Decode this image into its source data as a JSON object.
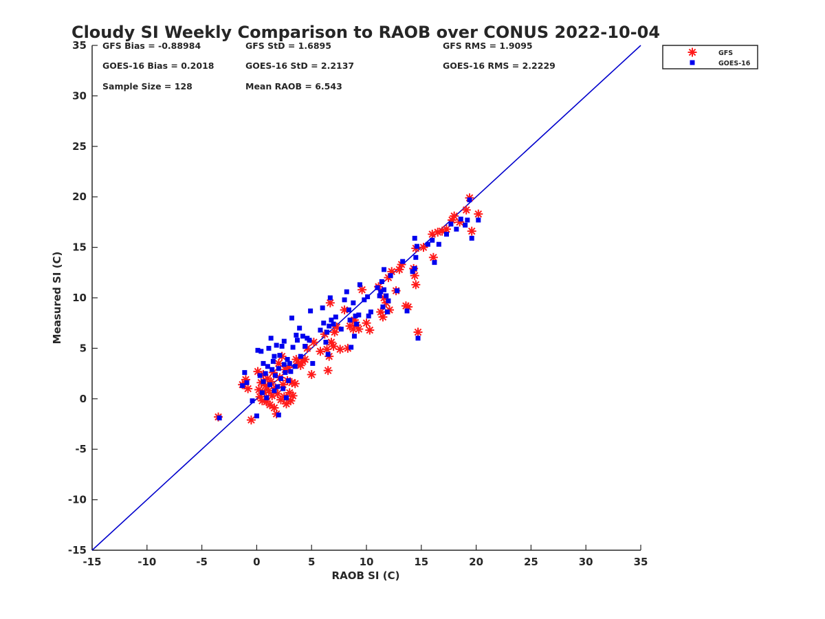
{
  "chart_data": {
    "type": "scatter",
    "title": "Cloudy SI Weekly Comparison to RAOB over CONUS 2022-10-04",
    "xlabel": "RAOB SI (C)",
    "ylabel": "Measured SI (C)",
    "xlim": [
      -15,
      35
    ],
    "ylim": [
      -15,
      35
    ],
    "xticks": [
      -15,
      -10,
      -5,
      0,
      5,
      10,
      15,
      20,
      25,
      30,
      35
    ],
    "yticks": [
      -15,
      -10,
      -5,
      0,
      5,
      10,
      15,
      20,
      25,
      30,
      35
    ],
    "grid": false,
    "legend_position": "outside-top-right",
    "reference_line": {
      "from": [
        -15,
        -15
      ],
      "to": [
        35,
        35
      ],
      "color": "#0000cc"
    },
    "stats": [
      [
        "GFS Bias = -0.88984",
        "GFS StD = 1.6895",
        "GFS RMS = 1.9095"
      ],
      [
        "GOES-16 Bias = 0.2018",
        "GOES-16 StD = 2.2137",
        "GOES-16 RMS = 2.2229"
      ],
      [
        "Sample Size = 128",
        "Mean RAOB = 6.543",
        ""
      ]
    ],
    "series": [
      {
        "name": "GFS",
        "marker": "asterisk",
        "color": "#ff1a1a",
        "points": [
          [
            -3.5,
            -1.8
          ],
          [
            -1.3,
            1.4
          ],
          [
            -1.0,
            1.9
          ],
          [
            -0.8,
            1.0
          ],
          [
            -0.5,
            -2.1
          ],
          [
            0.1,
            2.7
          ],
          [
            0.2,
            0.9
          ],
          [
            0.3,
            0.2
          ],
          [
            0.4,
            1.6
          ],
          [
            0.5,
            -0.2
          ],
          [
            0.6,
            2.4
          ],
          [
            0.7,
            0.6
          ],
          [
            0.8,
            1.3
          ],
          [
            0.9,
            -0.3
          ],
          [
            1.0,
            2.0
          ],
          [
            1.1,
            0.8
          ],
          [
            1.2,
            -0.6
          ],
          [
            1.3,
            1.7
          ],
          [
            1.4,
            0.3
          ],
          [
            1.5,
            2.6
          ],
          [
            1.6,
            -0.9
          ],
          [
            1.7,
            1.1
          ],
          [
            1.8,
            -1.5
          ],
          [
            1.9,
            0.5
          ],
          [
            2.0,
            3.5
          ],
          [
            2.1,
            2.1
          ],
          [
            2.2,
            -0.1
          ],
          [
            2.3,
            4.2
          ],
          [
            2.4,
            1.4
          ],
          [
            2.5,
            0.2
          ],
          [
            2.6,
            2.9
          ],
          [
            2.7,
            -0.5
          ],
          [
            2.8,
            1.8
          ],
          [
            2.9,
            3.1
          ],
          [
            3.0,
            0.6
          ],
          [
            3.1,
            -0.2
          ],
          [
            3.2,
            1.6
          ],
          [
            3.3,
            0.3
          ],
          [
            3.5,
            1.5
          ],
          [
            3.6,
            3.9
          ],
          [
            3.8,
            3.5
          ],
          [
            4.0,
            3.3
          ],
          [
            4.2,
            3.7
          ],
          [
            4.4,
            3.9
          ],
          [
            4.6,
            5.0
          ],
          [
            5.0,
            2.4
          ],
          [
            5.2,
            5.6
          ],
          [
            5.8,
            4.7
          ],
          [
            6.2,
            6.4
          ],
          [
            6.4,
            4.9
          ],
          [
            6.5,
            2.8
          ],
          [
            6.6,
            4.2
          ],
          [
            6.7,
            9.5
          ],
          [
            6.8,
            5.6
          ],
          [
            7.0,
            5.2
          ],
          [
            7.1,
            6.6
          ],
          [
            7.3,
            7.1
          ],
          [
            7.6,
            4.9
          ],
          [
            8.0,
            8.8
          ],
          [
            8.3,
            5.0
          ],
          [
            8.5,
            7.2
          ],
          [
            8.8,
            6.9
          ],
          [
            8.9,
            7.8
          ],
          [
            9.1,
            7.3
          ],
          [
            9.3,
            6.9
          ],
          [
            9.6,
            10.8
          ],
          [
            10.0,
            7.5
          ],
          [
            10.3,
            6.8
          ],
          [
            11.1,
            11.1
          ],
          [
            11.3,
            8.6
          ],
          [
            11.5,
            8.1
          ],
          [
            11.6,
            10.0
          ],
          [
            11.8,
            9.5
          ],
          [
            12.0,
            12.0
          ],
          [
            12.1,
            8.8
          ],
          [
            12.3,
            12.6
          ],
          [
            12.7,
            10.7
          ],
          [
            13.0,
            12.8
          ],
          [
            13.2,
            13.3
          ],
          [
            13.6,
            9.2
          ],
          [
            13.8,
            9.1
          ],
          [
            14.3,
            12.9
          ],
          [
            14.4,
            12.2
          ],
          [
            14.5,
            11.3
          ],
          [
            14.5,
            14.9
          ],
          [
            14.7,
            6.6
          ],
          [
            15.2,
            15.0
          ],
          [
            16.0,
            16.3
          ],
          [
            16.1,
            14.0
          ],
          [
            16.5,
            16.5
          ],
          [
            16.9,
            16.6
          ],
          [
            17.3,
            16.8
          ],
          [
            17.8,
            17.7
          ],
          [
            18.0,
            18.1
          ],
          [
            18.5,
            17.5
          ],
          [
            19.1,
            18.7
          ],
          [
            19.4,
            19.9
          ],
          [
            19.6,
            16.6
          ],
          [
            20.2,
            18.3
          ]
        ]
      },
      {
        "name": "GOES-16",
        "marker": "square",
        "color": "#0000ee",
        "points": [
          [
            -3.4,
            -1.9
          ],
          [
            -1.3,
            1.3
          ],
          [
            -1.1,
            2.6
          ],
          [
            -0.9,
            1.6
          ],
          [
            -0.4,
            -0.2
          ],
          [
            0.0,
            -1.7
          ],
          [
            0.1,
            4.8
          ],
          [
            0.3,
            2.3
          ],
          [
            0.4,
            4.7
          ],
          [
            0.5,
            0.6
          ],
          [
            0.6,
            1.7
          ],
          [
            0.6,
            3.5
          ],
          [
            0.8,
            2.5
          ],
          [
            0.9,
            0.1
          ],
          [
            1.0,
            3.2
          ],
          [
            1.1,
            5.0
          ],
          [
            1.2,
            1.4
          ],
          [
            1.3,
            6.0
          ],
          [
            1.4,
            2.9
          ],
          [
            1.5,
            3.7
          ],
          [
            1.6,
            0.8
          ],
          [
            1.6,
            4.2
          ],
          [
            1.7,
            2.3
          ],
          [
            1.8,
            5.3
          ],
          [
            1.9,
            1.2
          ],
          [
            2.0,
            3.0
          ],
          [
            2.0,
            -1.6
          ],
          [
            2.1,
            4.3
          ],
          [
            2.2,
            2.0
          ],
          [
            2.3,
            5.2
          ],
          [
            2.4,
            1.0
          ],
          [
            2.5,
            3.4
          ],
          [
            2.5,
            5.7
          ],
          [
            2.6,
            2.6
          ],
          [
            2.7,
            0.1
          ],
          [
            2.8,
            3.9
          ],
          [
            2.9,
            1.8
          ],
          [
            3.0,
            3.5
          ],
          [
            3.1,
            2.7
          ],
          [
            3.2,
            8.0
          ],
          [
            3.3,
            5.1
          ],
          [
            3.5,
            3.2
          ],
          [
            3.6,
            6.3
          ],
          [
            3.7,
            5.8
          ],
          [
            3.9,
            7.0
          ],
          [
            4.0,
            4.2
          ],
          [
            4.2,
            6.2
          ],
          [
            4.4,
            5.2
          ],
          [
            4.6,
            6.0
          ],
          [
            4.8,
            5.8
          ],
          [
            4.9,
            8.7
          ],
          [
            5.1,
            3.5
          ],
          [
            5.8,
            6.8
          ],
          [
            6.0,
            9.0
          ],
          [
            6.1,
            7.5
          ],
          [
            6.3,
            5.6
          ],
          [
            6.4,
            6.6
          ],
          [
            6.5,
            4.4
          ],
          [
            6.6,
            7.2
          ],
          [
            6.7,
            10.0
          ],
          [
            6.8,
            7.8
          ],
          [
            7.0,
            7.4
          ],
          [
            7.2,
            8.1
          ],
          [
            7.7,
            6.9
          ],
          [
            8.0,
            9.8
          ],
          [
            8.2,
            10.6
          ],
          [
            8.4,
            8.8
          ],
          [
            8.5,
            7.8
          ],
          [
            8.6,
            5.1
          ],
          [
            8.8,
            9.5
          ],
          [
            8.9,
            6.2
          ],
          [
            9.0,
            8.2
          ],
          [
            9.1,
            7.4
          ],
          [
            9.3,
            8.3
          ],
          [
            9.4,
            11.3
          ],
          [
            9.8,
            9.8
          ],
          [
            10.1,
            10.1
          ],
          [
            10.2,
            8.2
          ],
          [
            10.4,
            8.6
          ],
          [
            11.0,
            11.0
          ],
          [
            11.2,
            10.2
          ],
          [
            11.3,
            10.6
          ],
          [
            11.4,
            11.6
          ],
          [
            11.5,
            9.1
          ],
          [
            11.6,
            10.8
          ],
          [
            11.6,
            12.8
          ],
          [
            11.8,
            10.2
          ],
          [
            11.9,
            8.6
          ],
          [
            12.0,
            9.7
          ],
          [
            12.2,
            12.2
          ],
          [
            12.8,
            10.7
          ],
          [
            13.3,
            13.6
          ],
          [
            13.7,
            8.7
          ],
          [
            14.2,
            12.6
          ],
          [
            14.4,
            12.9
          ],
          [
            14.4,
            15.9
          ],
          [
            14.5,
            14.0
          ],
          [
            14.6,
            15.1
          ],
          [
            14.7,
            6.0
          ],
          [
            15.6,
            15.3
          ],
          [
            16.0,
            15.7
          ],
          [
            16.2,
            13.5
          ],
          [
            16.6,
            15.3
          ],
          [
            17.3,
            16.3
          ],
          [
            17.7,
            17.3
          ],
          [
            18.2,
            16.8
          ],
          [
            18.6,
            17.8
          ],
          [
            19.0,
            17.2
          ],
          [
            19.2,
            17.7
          ],
          [
            19.6,
            15.9
          ],
          [
            19.4,
            19.7
          ],
          [
            20.2,
            17.7
          ]
        ]
      }
    ]
  }
}
